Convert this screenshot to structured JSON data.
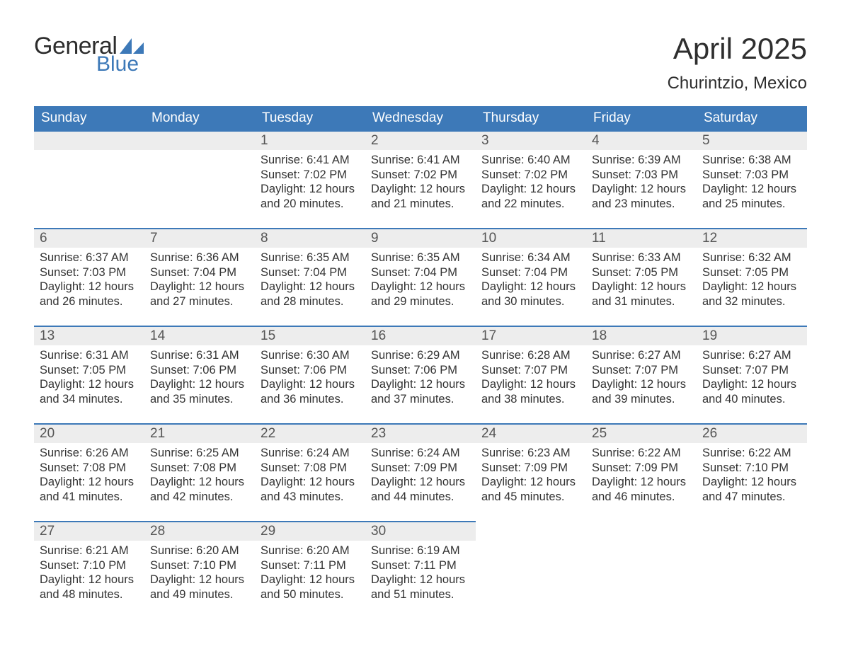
{
  "brand": {
    "word1": "General",
    "word2": "Blue",
    "word1_color": "#2d2d2d",
    "word2_color": "#3d79b8",
    "sail_color": "#3d79b8"
  },
  "title": "April 2025",
  "location": "Churintzio, Mexico",
  "colors": {
    "header_bg": "#3d79b8",
    "header_text": "#ffffff",
    "daynum_bg": "#ededed",
    "week_divider": "#3d79b8",
    "body_text": "#333333",
    "page_bg": "#ffffff"
  },
  "typography": {
    "title_fontsize_pt": 32,
    "location_fontsize_pt": 18,
    "header_fontsize_pt": 14,
    "daynum_fontsize_pt": 14,
    "body_fontsize_pt": 12
  },
  "weekday_labels": [
    "Sunday",
    "Monday",
    "Tuesday",
    "Wednesday",
    "Thursday",
    "Friday",
    "Saturday"
  ],
  "weeks": [
    [
      null,
      null,
      {
        "n": "1",
        "sunrise": "Sunrise: 6:41 AM",
        "sunset": "Sunset: 7:02 PM",
        "day1": "Daylight: 12 hours",
        "day2": "and 20 minutes."
      },
      {
        "n": "2",
        "sunrise": "Sunrise: 6:41 AM",
        "sunset": "Sunset: 7:02 PM",
        "day1": "Daylight: 12 hours",
        "day2": "and 21 minutes."
      },
      {
        "n": "3",
        "sunrise": "Sunrise: 6:40 AM",
        "sunset": "Sunset: 7:02 PM",
        "day1": "Daylight: 12 hours",
        "day2": "and 22 minutes."
      },
      {
        "n": "4",
        "sunrise": "Sunrise: 6:39 AM",
        "sunset": "Sunset: 7:03 PM",
        "day1": "Daylight: 12 hours",
        "day2": "and 23 minutes."
      },
      {
        "n": "5",
        "sunrise": "Sunrise: 6:38 AM",
        "sunset": "Sunset: 7:03 PM",
        "day1": "Daylight: 12 hours",
        "day2": "and 25 minutes."
      }
    ],
    [
      {
        "n": "6",
        "sunrise": "Sunrise: 6:37 AM",
        "sunset": "Sunset: 7:03 PM",
        "day1": "Daylight: 12 hours",
        "day2": "and 26 minutes."
      },
      {
        "n": "7",
        "sunrise": "Sunrise: 6:36 AM",
        "sunset": "Sunset: 7:04 PM",
        "day1": "Daylight: 12 hours",
        "day2": "and 27 minutes."
      },
      {
        "n": "8",
        "sunrise": "Sunrise: 6:35 AM",
        "sunset": "Sunset: 7:04 PM",
        "day1": "Daylight: 12 hours",
        "day2": "and 28 minutes."
      },
      {
        "n": "9",
        "sunrise": "Sunrise: 6:35 AM",
        "sunset": "Sunset: 7:04 PM",
        "day1": "Daylight: 12 hours",
        "day2": "and 29 minutes."
      },
      {
        "n": "10",
        "sunrise": "Sunrise: 6:34 AM",
        "sunset": "Sunset: 7:04 PM",
        "day1": "Daylight: 12 hours",
        "day2": "and 30 minutes."
      },
      {
        "n": "11",
        "sunrise": "Sunrise: 6:33 AM",
        "sunset": "Sunset: 7:05 PM",
        "day1": "Daylight: 12 hours",
        "day2": "and 31 minutes."
      },
      {
        "n": "12",
        "sunrise": "Sunrise: 6:32 AM",
        "sunset": "Sunset: 7:05 PM",
        "day1": "Daylight: 12 hours",
        "day2": "and 32 minutes."
      }
    ],
    [
      {
        "n": "13",
        "sunrise": "Sunrise: 6:31 AM",
        "sunset": "Sunset: 7:05 PM",
        "day1": "Daylight: 12 hours",
        "day2": "and 34 minutes."
      },
      {
        "n": "14",
        "sunrise": "Sunrise: 6:31 AM",
        "sunset": "Sunset: 7:06 PM",
        "day1": "Daylight: 12 hours",
        "day2": "and 35 minutes."
      },
      {
        "n": "15",
        "sunrise": "Sunrise: 6:30 AM",
        "sunset": "Sunset: 7:06 PM",
        "day1": "Daylight: 12 hours",
        "day2": "and 36 minutes."
      },
      {
        "n": "16",
        "sunrise": "Sunrise: 6:29 AM",
        "sunset": "Sunset: 7:06 PM",
        "day1": "Daylight: 12 hours",
        "day2": "and 37 minutes."
      },
      {
        "n": "17",
        "sunrise": "Sunrise: 6:28 AM",
        "sunset": "Sunset: 7:07 PM",
        "day1": "Daylight: 12 hours",
        "day2": "and 38 minutes."
      },
      {
        "n": "18",
        "sunrise": "Sunrise: 6:27 AM",
        "sunset": "Sunset: 7:07 PM",
        "day1": "Daylight: 12 hours",
        "day2": "and 39 minutes."
      },
      {
        "n": "19",
        "sunrise": "Sunrise: 6:27 AM",
        "sunset": "Sunset: 7:07 PM",
        "day1": "Daylight: 12 hours",
        "day2": "and 40 minutes."
      }
    ],
    [
      {
        "n": "20",
        "sunrise": "Sunrise: 6:26 AM",
        "sunset": "Sunset: 7:08 PM",
        "day1": "Daylight: 12 hours",
        "day2": "and 41 minutes."
      },
      {
        "n": "21",
        "sunrise": "Sunrise: 6:25 AM",
        "sunset": "Sunset: 7:08 PM",
        "day1": "Daylight: 12 hours",
        "day2": "and 42 minutes."
      },
      {
        "n": "22",
        "sunrise": "Sunrise: 6:24 AM",
        "sunset": "Sunset: 7:08 PM",
        "day1": "Daylight: 12 hours",
        "day2": "and 43 minutes."
      },
      {
        "n": "23",
        "sunrise": "Sunrise: 6:24 AM",
        "sunset": "Sunset: 7:09 PM",
        "day1": "Daylight: 12 hours",
        "day2": "and 44 minutes."
      },
      {
        "n": "24",
        "sunrise": "Sunrise: 6:23 AM",
        "sunset": "Sunset: 7:09 PM",
        "day1": "Daylight: 12 hours",
        "day2": "and 45 minutes."
      },
      {
        "n": "25",
        "sunrise": "Sunrise: 6:22 AM",
        "sunset": "Sunset: 7:09 PM",
        "day1": "Daylight: 12 hours",
        "day2": "and 46 minutes."
      },
      {
        "n": "26",
        "sunrise": "Sunrise: 6:22 AM",
        "sunset": "Sunset: 7:10 PM",
        "day1": "Daylight: 12 hours",
        "day2": "and 47 minutes."
      }
    ],
    [
      {
        "n": "27",
        "sunrise": "Sunrise: 6:21 AM",
        "sunset": "Sunset: 7:10 PM",
        "day1": "Daylight: 12 hours",
        "day2": "and 48 minutes."
      },
      {
        "n": "28",
        "sunrise": "Sunrise: 6:20 AM",
        "sunset": "Sunset: 7:10 PM",
        "day1": "Daylight: 12 hours",
        "day2": "and 49 minutes."
      },
      {
        "n": "29",
        "sunrise": "Sunrise: 6:20 AM",
        "sunset": "Sunset: 7:11 PM",
        "day1": "Daylight: 12 hours",
        "day2": "and 50 minutes."
      },
      {
        "n": "30",
        "sunrise": "Sunrise: 6:19 AM",
        "sunset": "Sunset: 7:11 PM",
        "day1": "Daylight: 12 hours",
        "day2": "and 51 minutes."
      },
      null,
      null,
      null
    ]
  ]
}
